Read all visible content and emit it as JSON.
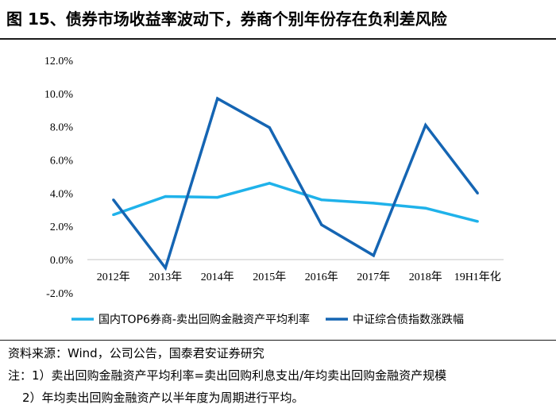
{
  "title": "图 15、债券市场收益率波动下，券商个别年份存在负利差风险",
  "source": "资料来源：Wind，公司公告，国泰君安证券研究",
  "notes": [
    "注：1）卖出回购金融资产平均利率=卖出回购利息支出/年均卖出回购金融资产规模",
    "2）年均卖出回购金融资产以半年度为周期进行平均。"
  ],
  "chart_data": {
    "type": "line",
    "categories": [
      "2012年",
      "2013年",
      "2014年",
      "2015年",
      "2016年",
      "2017年",
      "2018年",
      "19H1年化"
    ],
    "y_ticks": [
      "12.0%",
      "10.0%",
      "8.0%",
      "6.0%",
      "4.0%",
      "2.0%",
      "0.0%",
      "-2.0%"
    ],
    "ylim": [
      -2,
      12
    ],
    "series": [
      {
        "name": "国内TOP6券商-卖出回购金融资产平均利率",
        "color": "#1fb2ea",
        "values": [
          2.7,
          3.8,
          3.75,
          4.6,
          3.6,
          3.4,
          3.1,
          2.3
        ]
      },
      {
        "name": "中证综合债指数涨跌幅",
        "color": "#1565b3",
        "values": [
          3.6,
          -0.5,
          9.7,
          7.95,
          2.1,
          0.25,
          8.1,
          4.0
        ]
      }
    ],
    "legend_position": "bottom"
  }
}
